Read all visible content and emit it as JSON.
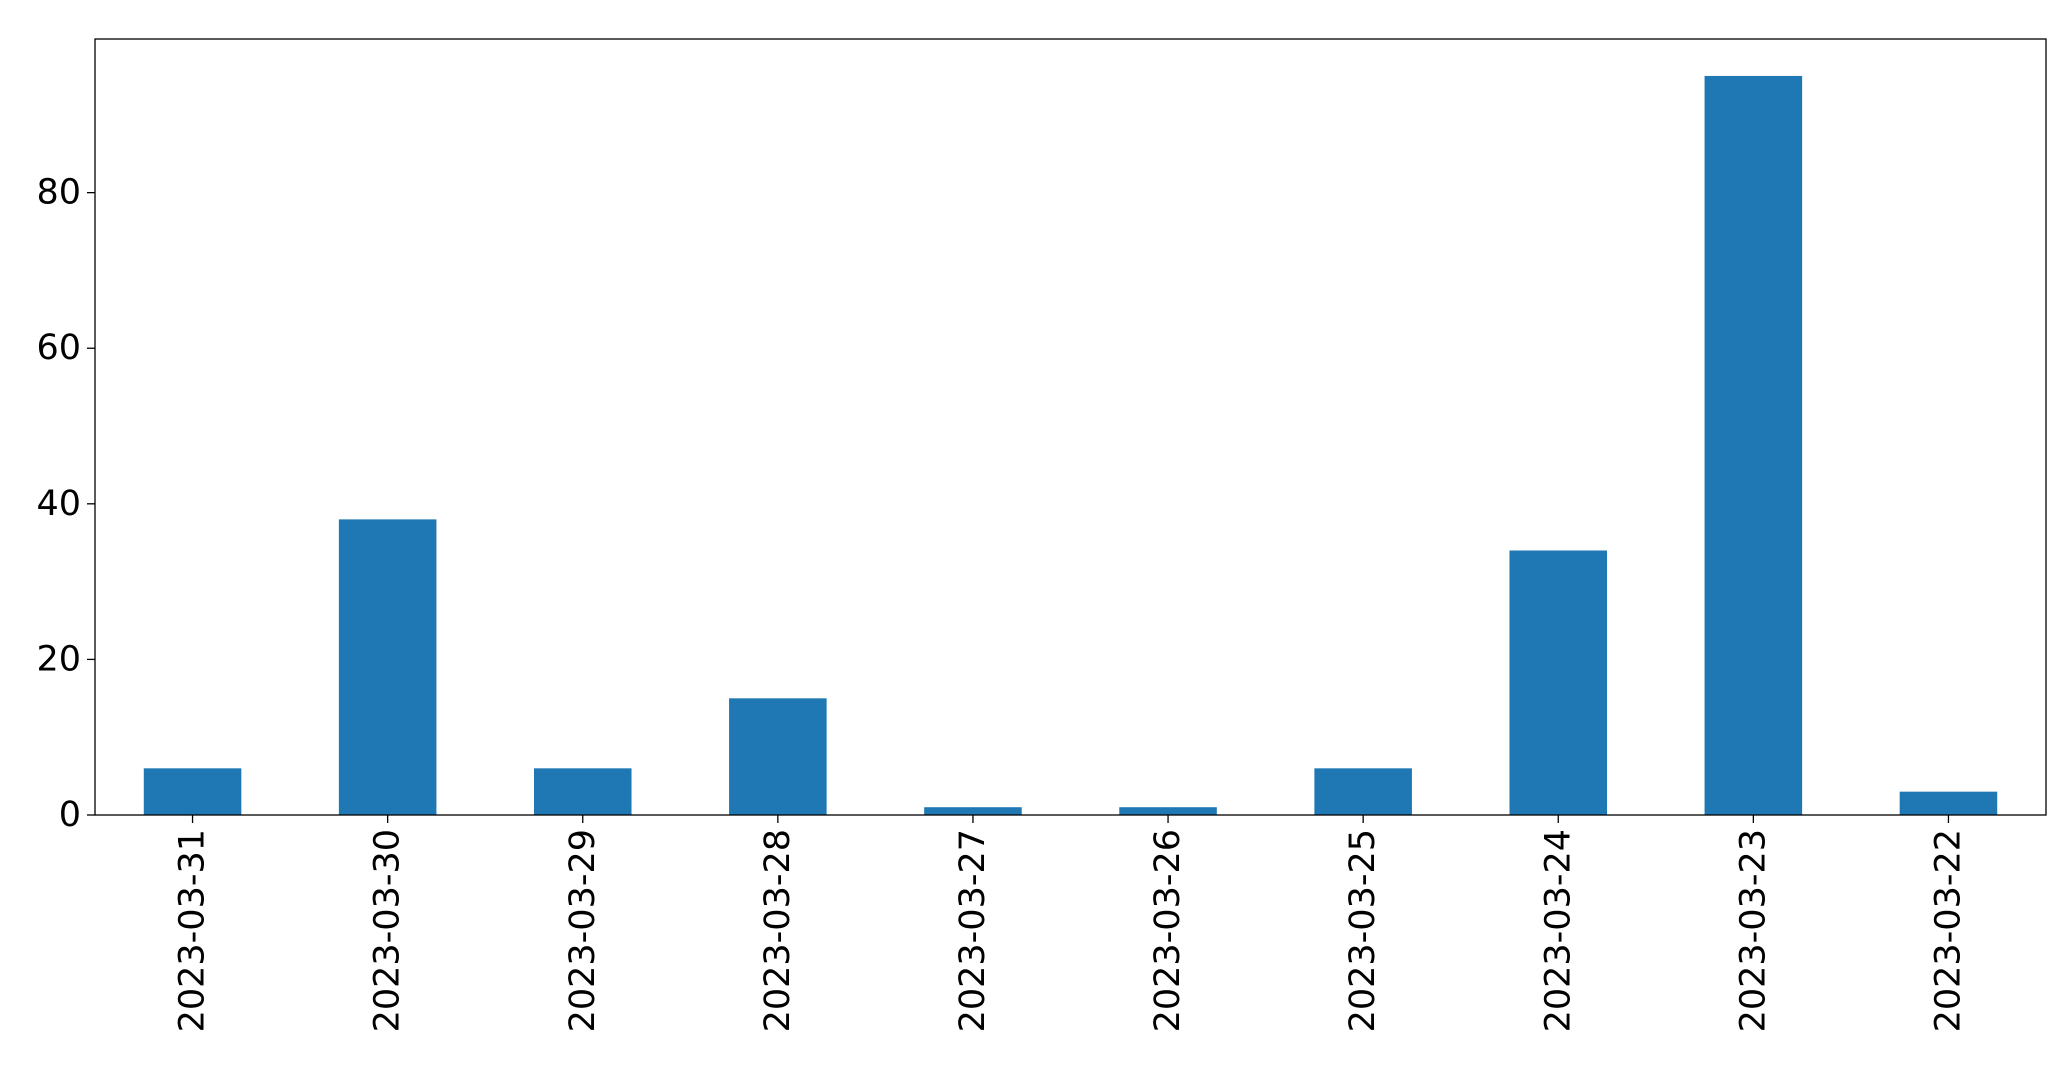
{
  "chart_data": {
    "type": "bar",
    "categories": [
      "2023-03-31",
      "2023-03-30",
      "2023-03-29",
      "2023-03-28",
      "2023-03-27",
      "2023-03-26",
      "2023-03-25",
      "2023-03-24",
      "2023-03-23",
      "2023-03-22"
    ],
    "values": [
      6,
      38,
      6,
      15,
      1,
      1,
      6,
      34,
      95,
      3
    ],
    "title": "",
    "xlabel": "",
    "ylabel": "",
    "ylim": [
      0,
      99.75
    ],
    "yticks": [
      0,
      20,
      40,
      60,
      80
    ],
    "ytick_labels": [
      "0",
      "20",
      "40",
      "60",
      "80"
    ],
    "grid": false,
    "legend": "none",
    "bar_color": "#1f77b4"
  }
}
